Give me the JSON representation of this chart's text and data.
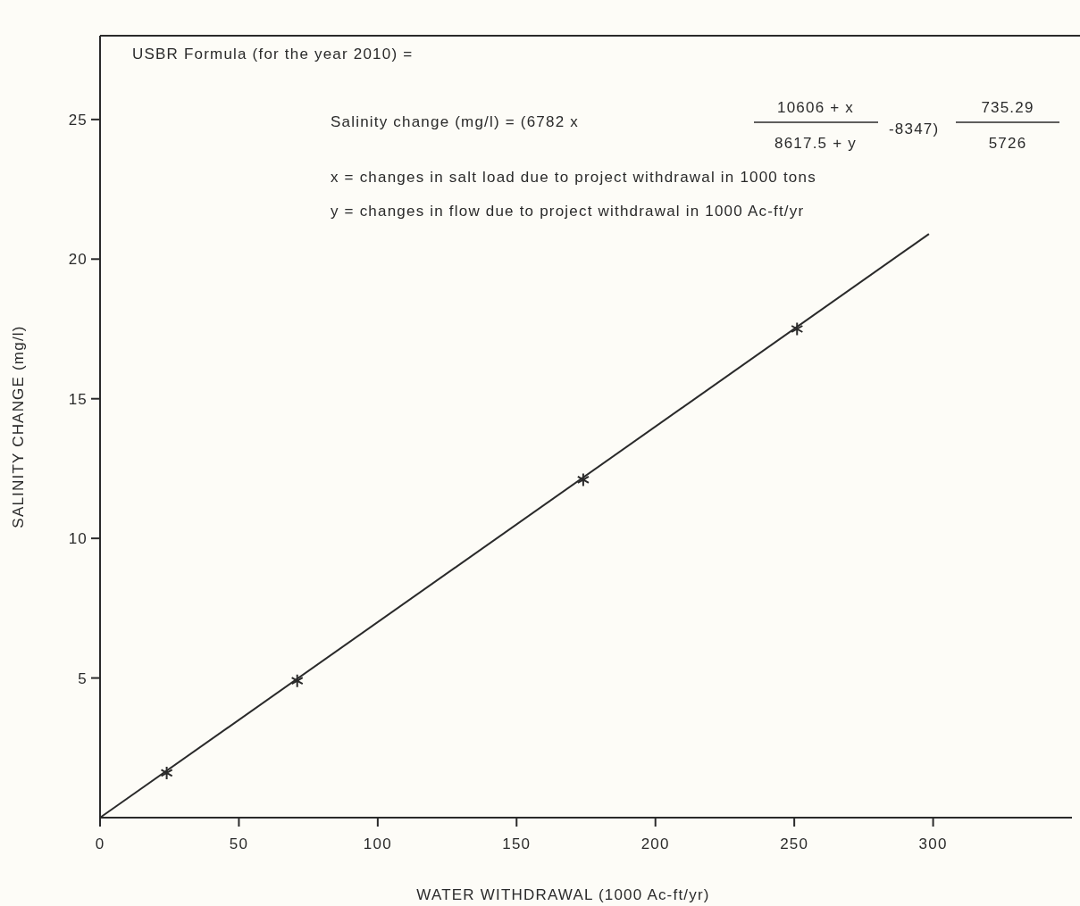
{
  "chart_data": {
    "type": "scatter",
    "xlabel": "WATER WITHDRAWAL (1000 Ac-ft/yr)",
    "ylabel": "SALINITY CHANGE (mg/l)",
    "annotations": [
      "USBR Formula (for the year 2010) =",
      "Salinity change (mg/l) = (6782  x",
      "10606 + x",
      "8617.5 + y",
      "-8347)",
      "735.29",
      "5726",
      "x = changes in salt load due to project withdrawal in 1000 tons",
      "y = changes in flow due to project withdrawal in 1000 Ac-ft/yr"
    ],
    "series": [
      {
        "type": "line",
        "color": "#2a2a2a",
        "x": [
          0,
          298.5
        ],
        "values": [
          0,
          20.9
        ],
        "marker": "none",
        "line_style": "solid"
      },
      {
        "color": "#2a2a2a",
        "x": [
          24,
          71,
          174,
          251
        ],
        "values": [
          1.6,
          4.9,
          12.1,
          17.5
        ],
        "marker": "cross"
      }
    ],
    "xlim": [
      0,
      350
    ],
    "ylim": [
      0,
      28
    ],
    "xticks": [
      0,
      50,
      100,
      150,
      200,
      250,
      300
    ],
    "yticks": [
      5,
      10,
      15,
      20,
      25
    ],
    "grid": false
  }
}
